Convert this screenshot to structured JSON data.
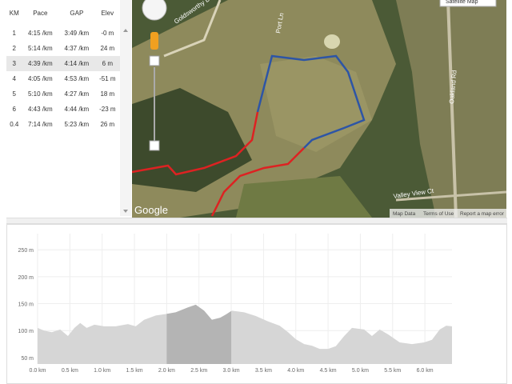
{
  "table": {
    "headers": [
      "KM",
      "Pace",
      "GAP",
      "Elev"
    ],
    "rows": [
      [
        "1",
        "4:15 /km",
        "3:49 /km",
        "-0 m"
      ],
      [
        "2",
        "5:14 /km",
        "4:37 /km",
        "24 m"
      ],
      [
        "3",
        "4:39 /km",
        "4:14 /km",
        "6 m"
      ],
      [
        "4",
        "4:05 /km",
        "4:53 /km",
        "-51 m"
      ],
      [
        "5",
        "5:10 /km",
        "4:27 /km",
        "18 m"
      ],
      [
        "6",
        "4:43 /km",
        "4:44 /km",
        "-23 m"
      ],
      [
        "0.4",
        "7:14 /km",
        "5:23 /km",
        "26 m"
      ]
    ],
    "selected_row": 2
  },
  "map": {
    "map_type": "Satellite Map",
    "streets": [
      "Goldsworthy Dr",
      "Port Ln",
      "Oakland Rd",
      "Valley View Ct"
    ],
    "logo": "Google",
    "links": [
      "Map Data",
      "Terms of Use",
      "Report a map error"
    ]
  },
  "chart_data": {
    "type": "area",
    "color": "#d6d6d6",
    "highlight_color": "#b4b4b4",
    "grid": true,
    "x": [
      0.0,
      0.1,
      0.22,
      0.35,
      0.47,
      0.57,
      0.66,
      0.76,
      0.88,
      1.03,
      1.21,
      1.4,
      1.52,
      1.65,
      1.83,
      2.0,
      2.14,
      2.33,
      2.45,
      2.58,
      2.7,
      2.83,
      2.92,
      3.01,
      3.2,
      3.38,
      3.57,
      3.75,
      3.88,
      4.0,
      4.13,
      4.25,
      4.37,
      4.5,
      4.62,
      4.75,
      4.87,
      5.06,
      5.18,
      5.3,
      5.43,
      5.61,
      5.8,
      5.99,
      6.11,
      6.23,
      6.33,
      6.42
    ],
    "values": [
      105,
      100,
      97,
      102,
      90,
      105,
      114,
      105,
      111,
      108,
      108,
      112,
      108,
      120,
      128,
      131,
      134,
      143,
      148,
      137,
      120,
      124,
      130,
      137,
      134,
      127,
      117,
      109,
      97,
      84,
      75,
      72,
      66,
      66,
      71,
      90,
      105,
      102,
      90,
      102,
      93,
      78,
      75,
      78,
      83,
      102,
      109,
      108
    ],
    "highlight": [
      2.0,
      3.0
    ],
    "xlim": [
      0,
      6.42
    ],
    "ylim": [
      38,
      280
    ],
    "xticks": [
      {
        "value": 0,
        "label": "0.0 km"
      },
      {
        "value": 0.5,
        "label": "0.5 km"
      },
      {
        "value": 1,
        "label": "1.0 km"
      },
      {
        "value": 1.5,
        "label": "1.5 km"
      },
      {
        "value": 2,
        "label": "2.0 km"
      },
      {
        "value": 2.5,
        "label": "2.5 km"
      },
      {
        "value": 3,
        "label": "3.0 km"
      },
      {
        "value": 3.5,
        "label": "3.5 km"
      },
      {
        "value": 4,
        "label": "4.0 km"
      },
      {
        "value": 4.5,
        "label": "4.5 km"
      },
      {
        "value": 5,
        "label": "5.0 km"
      },
      {
        "value": 5.5,
        "label": "5.5 km"
      },
      {
        "value": 6,
        "label": "6.0 km"
      }
    ],
    "yticks": [
      {
        "value": 50,
        "label": "50 m"
      },
      {
        "value": 100,
        "label": "100 m"
      },
      {
        "value": 150,
        "label": "150 m"
      },
      {
        "value": 200,
        "label": "200 m"
      },
      {
        "value": 250,
        "label": "250 m"
      }
    ]
  }
}
